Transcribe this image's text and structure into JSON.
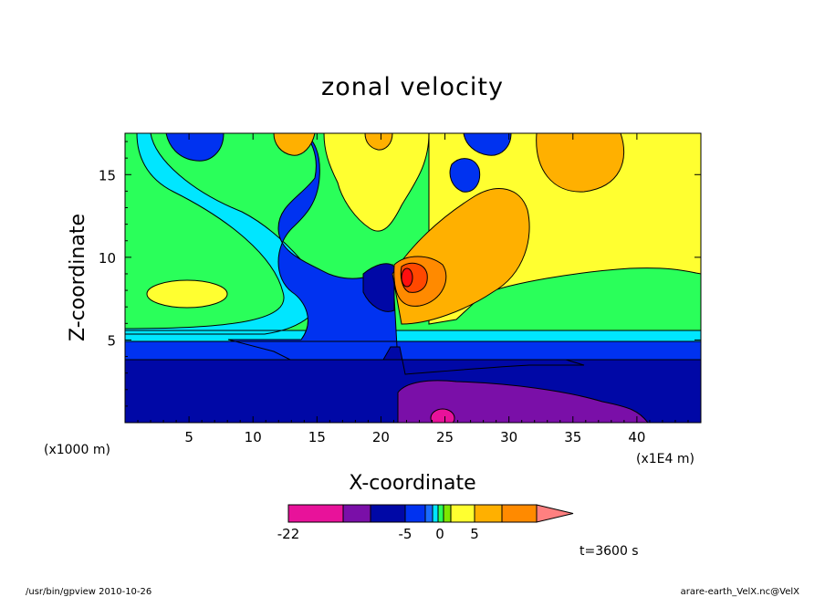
{
  "chart_data": {
    "type": "heatmap",
    "title": "zonal velocity",
    "xlabel": "X-coordinate",
    "ylabel": "Z-coordinate",
    "x_unit": "(x1E4 m)",
    "y_unit": "(x1000 m)",
    "xlim": [
      0,
      45
    ],
    "ylim": [
      0,
      17.5
    ],
    "xticks": [
      5,
      10,
      15,
      20,
      25,
      30,
      35,
      40
    ],
    "yticks": [
      5,
      10,
      15
    ],
    "time_label": "t=3600 s",
    "colorbar": {
      "tick_labels": [
        "-22",
        "-5",
        "0",
        "5"
      ],
      "tick_values": [
        -22,
        -5,
        0,
        5
      ],
      "colors": [
        "#e8129a",
        "#7a0fa8",
        "#0008a6",
        "#0032f0",
        "#1a6cff",
        "#00e6ff",
        "#2aff5a",
        "#7fe600",
        "#ffff30",
        "#ffb000",
        "#ff8a00",
        "#ff4800",
        "#ff0f0f",
        "#ff8080"
      ]
    },
    "fields": [
      {
        "value_band": "-8 to -5",
        "color": "#0008a6",
        "region": "lower layer x 0-45, z 0-3.8"
      },
      {
        "value_band": "-22 to -15",
        "color": "#7a0fa8",
        "region": "lee side x 21-39, z 0-2"
      },
      {
        "value_band": "< -22",
        "color": "#e8129a",
        "region": "x 24-26, z 0-0.8"
      },
      {
        "value_band": "-5 to -3",
        "color": "#0032f0",
        "region": "z 3.8-5, plume x 12-21 up to z 14"
      },
      {
        "value_band": "-3 to -1",
        "color": "#00e6ff",
        "region": "z 5-5.7 and x 2-17 up to z 16"
      },
      {
        "value_band": "0 to 2",
        "color": "#2aff5a",
        "region": "mid/upper background"
      },
      {
        "value_band": "2 to 4",
        "color": "#ffff30",
        "region": "x 25-45, z 5-17.5; patch x 2-8 z 8"
      },
      {
        "value_band": "4 to 6",
        "color": "#ffb000",
        "region": "x 22-31, z 6-14; x 32-38 z 13-17.5"
      },
      {
        "value_band": "6 to 8",
        "color": "#ff8a00",
        "region": "x 21.5-24.5, z 7-10"
      },
      {
        "value_band": "> 8",
        "color": "#ff0f0f",
        "region": "x 22-24, z 8-9.5"
      }
    ]
  },
  "footer": {
    "left": "/usr/bin/gpview   2010-10-26",
    "right": "arare-earth_VelX.nc@VelX"
  }
}
